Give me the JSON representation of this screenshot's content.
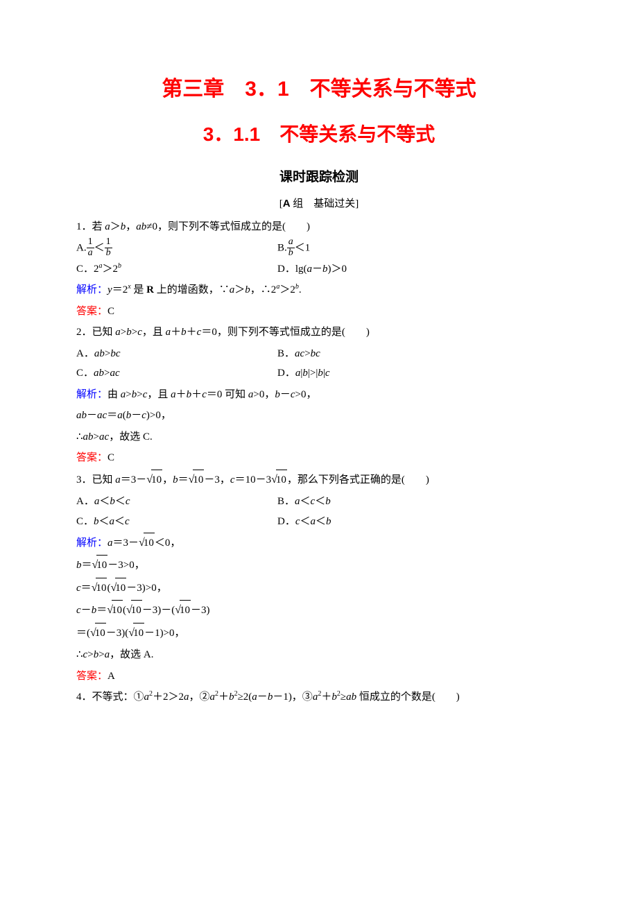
{
  "titles": {
    "chapter": "第三章　3．1　不等关系与不等式",
    "section": "3．1.1　不等关系与不等式",
    "subtitle": "课时跟踪检测",
    "group": "[A 组　基础过关]"
  },
  "q1": {
    "stem": "1．若 a＞b，ab≠0，则下列不等式恒成立的是(　　)",
    "optA_pre": "A.",
    "optB_pre": "B.",
    "optB_suf": "＜1",
    "optC": "C．2ᵃ＞2ᵇ",
    "optD": "D．lg(a－b)＞0",
    "analysis_label": "解析：",
    "analysis_body": "y＝2ˣ 是 R 上的增函数，∵a＞b，∴2ᵃ＞2ᵇ.",
    "answer_label": "答案：",
    "answer": "C"
  },
  "q2": {
    "stem": "2．已知 a>b>c，且 a＋b＋c＝0，则下列不等式恒成立的是(　　)",
    "optA": "A．ab>bc",
    "optB": "B．ac>bc",
    "optC": "C．ab>ac",
    "optD": "D．a|b|>|b|c",
    "analysis_label": "解析：",
    "analysis_l1": "由 a>b>c，且 a＋b＋c＝0 可知 a>0，b－c>0，",
    "analysis_l2": "ab－ac＝a(b－c)>0，",
    "analysis_l3": "∴ab>ac，故选 C.",
    "answer_label": "答案：",
    "answer": "C"
  },
  "q3": {
    "stem_pre": "3．已知 a＝3－",
    "stem_mid1": "，b＝",
    "stem_mid2": "－3，c＝10－3",
    "stem_suf": "，那么下列各式正确的是(　　)",
    "optA": "A．a＜b＜c",
    "optB": "B．a＜c＜b",
    "optC": "C．b＜a＜c",
    "optD": "D．c＜a＜b",
    "analysis_label": "解析：",
    "l1_pre": "a＝3－",
    "l1_suf": "＜0，",
    "l2_pre": "b＝",
    "l2_suf": "－3>0，",
    "l3_pre": "c＝",
    "l3_mid": "(",
    "l3_suf": "－3)>0，",
    "l4_pre": "c－b＝",
    "l4_mid1": "(",
    "l4_mid2": "－3)－(",
    "l4_suf": "－3)",
    "l5_pre": "＝(",
    "l5_mid1": "－3)(",
    "l5_suf": "－1)>0，",
    "l6": "∴c>b>a，故选 A.",
    "answer_label": "答案：",
    "answer": "A",
    "sqrt10": "10"
  },
  "q4": {
    "stem": "4．不等式：①a²＋2＞2a，②a²＋b²≥2(a－b－1)，③a²＋b²≥ab 恒成立的个数是(　　)"
  }
}
